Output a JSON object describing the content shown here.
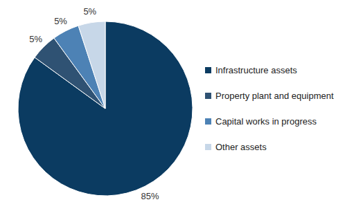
{
  "chart_data": {
    "type": "pie",
    "categories": [
      "Infrastructure assets",
      "Property plant and equipment",
      "Capital works in progress",
      "Other assets"
    ],
    "values": [
      85,
      5,
      5,
      5
    ],
    "value_labels": [
      "85%",
      "5%",
      "5%",
      "5%"
    ],
    "colors": [
      "#0b3b61",
      "#2f5273",
      "#4d82b5",
      "#c7d7e8"
    ],
    "data_labels": true,
    "legend": "right"
  }
}
